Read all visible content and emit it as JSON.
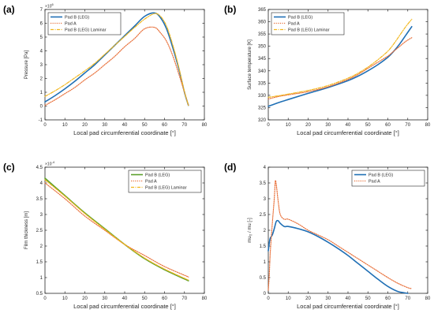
{
  "colors": {
    "pad_b_leg": "#1f6fb5",
    "pad_a": "#e8703a",
    "pad_b_leg_laminar": "#f2b71d",
    "pad_b_leg_alt": "#5aa02c"
  },
  "chart_data": [
    {
      "panel": "(a)",
      "type": "line",
      "xlabel": "Local pad circumferential coordinate [°]",
      "ylabel": "Pressure [Pa]",
      "y_exponent": "× 10^6",
      "xlim": [
        0,
        80
      ],
      "ylim": [
        -1,
        7
      ],
      "xticks": [
        0,
        10,
        20,
        30,
        40,
        50,
        60,
        70,
        80
      ],
      "yticks": [
        -1,
        0,
        1,
        2,
        3,
        4,
        5,
        6,
        7
      ],
      "legend_position": "top-left",
      "series": [
        {
          "name": "Pad B (LEG)",
          "style": "solid",
          "color": "#1f6fb5",
          "x": [
            0,
            5,
            10,
            15,
            20,
            25,
            30,
            35,
            40,
            45,
            50,
            55,
            58,
            61,
            64,
            67,
            70,
            72
          ],
          "y": [
            0.3,
            0.75,
            1.25,
            1.8,
            2.4,
            3.0,
            3.7,
            4.4,
            5.1,
            5.8,
            6.5,
            6.75,
            6.4,
            5.6,
            4.3,
            2.8,
            1.0,
            0.05
          ]
        },
        {
          "name": "Pad A",
          "style": "dotted",
          "color": "#e8703a",
          "x": [
            0,
            5,
            10,
            15,
            20,
            25,
            30,
            35,
            40,
            45,
            50,
            55,
            58,
            61,
            64,
            67,
            70,
            72
          ],
          "y": [
            0.05,
            0.45,
            0.9,
            1.35,
            1.9,
            2.4,
            3.0,
            3.6,
            4.3,
            4.9,
            5.6,
            5.7,
            5.3,
            4.7,
            3.7,
            2.4,
            1.0,
            0.05
          ]
        },
        {
          "name": "Pad B (LEG) Laminar",
          "style": "dashdot",
          "color": "#f2b71d",
          "x": [
            0,
            5,
            10,
            15,
            20,
            25,
            30,
            35,
            40,
            45,
            50,
            55,
            58,
            61,
            64,
            67,
            70,
            72
          ],
          "y": [
            0.7,
            1.1,
            1.55,
            2.05,
            2.55,
            3.1,
            3.75,
            4.4,
            5.05,
            5.7,
            6.3,
            6.7,
            6.5,
            5.8,
            4.5,
            2.9,
            1.05,
            0.05
          ]
        }
      ]
    },
    {
      "panel": "(b)",
      "type": "line",
      "xlabel": "Local pad circumferential coordinate [°]",
      "ylabel": "Surface temperature [K]",
      "xlim": [
        0,
        80
      ],
      "ylim": [
        320,
        365
      ],
      "xticks": [
        0,
        10,
        20,
        30,
        40,
        50,
        60,
        70,
        80
      ],
      "yticks": [
        320,
        325,
        330,
        335,
        340,
        345,
        350,
        355,
        360,
        365
      ],
      "legend_position": "top-left",
      "series": [
        {
          "name": "Pad B (LEG)",
          "style": "solid",
          "color": "#1f6fb5",
          "x": [
            0,
            5,
            10,
            20,
            30,
            40,
            45,
            50,
            55,
            60,
            63,
            66,
            69,
            72
          ],
          "y": [
            325.5,
            327,
            328.3,
            330.8,
            333.2,
            336,
            337.8,
            340,
            342.5,
            345.5,
            348,
            351,
            354.5,
            358
          ]
        },
        {
          "name": "Pad A",
          "style": "dotted",
          "color": "#e8703a",
          "x": [
            0,
            5,
            10,
            20,
            30,
            40,
            45,
            50,
            55,
            60,
            63,
            66,
            69,
            72
          ],
          "y": [
            328.5,
            329.5,
            330.2,
            331.5,
            333.5,
            336.5,
            338.5,
            341,
            343.5,
            346,
            348,
            350,
            352,
            353.5
          ]
        },
        {
          "name": "Pad B (LEG) Laminar",
          "style": "dashdot",
          "color": "#f2b71d",
          "x": [
            0,
            5,
            10,
            20,
            30,
            40,
            45,
            50,
            55,
            60,
            63,
            66,
            69,
            72
          ],
          "y": [
            329.2,
            329.8,
            330.5,
            332,
            334,
            337,
            339,
            341.5,
            344.5,
            348,
            351,
            354.5,
            358,
            361
          ]
        }
      ]
    },
    {
      "panel": "(c)",
      "type": "line",
      "xlabel": "Local pad circumferential coordinate [°]",
      "ylabel": "Film thickness [m]",
      "y_exponent": "× 10^-4",
      "xlim": [
        0,
        80
      ],
      "ylim": [
        0.5,
        4.5
      ],
      "xticks": [
        0,
        10,
        20,
        30,
        40,
        50,
        60,
        70,
        80
      ],
      "yticks": [
        0.5,
        1,
        1.5,
        2,
        2.5,
        3,
        3.5,
        4,
        4.5
      ],
      "legend_position": "top-right",
      "series": [
        {
          "name": "Pad B (LEG)",
          "style": "solid",
          "color": "#5aa02c",
          "x": [
            0,
            10,
            20,
            30,
            40,
            50,
            60,
            72
          ],
          "y": [
            4.15,
            3.6,
            3.05,
            2.55,
            2.05,
            1.6,
            1.25,
            0.9
          ]
        },
        {
          "name": "Pad A",
          "style": "dotted",
          "color": "#e8703a",
          "x": [
            0,
            10,
            20,
            30,
            40,
            50,
            60,
            72
          ],
          "y": [
            4.0,
            3.5,
            2.95,
            2.5,
            2.05,
            1.7,
            1.35,
            1.02
          ]
        },
        {
          "name": "Pad B (LEG) Laminar",
          "style": "dashdot",
          "color": "#f2b71d",
          "x": [
            0,
            10,
            20,
            30,
            40,
            50,
            60,
            72
          ],
          "y": [
            4.1,
            3.58,
            3.03,
            2.53,
            2.05,
            1.62,
            1.27,
            0.92
          ]
        }
      ]
    },
    {
      "panel": "(d)",
      "type": "line",
      "xlabel": "Local pad circumferential coordinate [°]",
      "ylabel": "mu_T / mu [-]",
      "xlim": [
        0,
        80
      ],
      "ylim": [
        0,
        4
      ],
      "xticks": [
        0,
        10,
        20,
        30,
        40,
        50,
        60,
        70,
        80
      ],
      "yticks": [
        0,
        0.5,
        1,
        1.5,
        2,
        2.5,
        3,
        3.5,
        4
      ],
      "legend_position": "top-right",
      "series": [
        {
          "name": "Pad B (LEG)",
          "style": "solid",
          "color": "#1f6fb5",
          "x": [
            0,
            0.5,
            1,
            2,
            3,
            4,
            5,
            6,
            8,
            10,
            15,
            20,
            25,
            30,
            35,
            40,
            45,
            50,
            55,
            60,
            65,
            70
          ],
          "y": [
            1.35,
            1.6,
            1.75,
            1.85,
            2.05,
            2.28,
            2.3,
            2.22,
            2.12,
            2.12,
            2.05,
            1.95,
            1.8,
            1.62,
            1.42,
            1.2,
            0.95,
            0.7,
            0.45,
            0.22,
            0.06,
            0.0
          ]
        },
        {
          "name": "Pad A",
          "style": "dotted",
          "color": "#e8703a",
          "x": [
            0,
            0.5,
            1,
            2,
            3,
            3.5,
            4,
            5,
            6,
            8,
            10,
            15,
            20,
            25,
            30,
            35,
            40,
            45,
            50,
            55,
            60,
            65,
            70,
            72
          ],
          "y": [
            0.1,
            0.6,
            1.3,
            2.2,
            3.0,
            3.55,
            3.45,
            2.9,
            2.5,
            2.35,
            2.35,
            2.2,
            2.0,
            1.85,
            1.7,
            1.5,
            1.3,
            1.1,
            0.9,
            0.7,
            0.5,
            0.32,
            0.18,
            0.15
          ]
        }
      ]
    }
  ]
}
